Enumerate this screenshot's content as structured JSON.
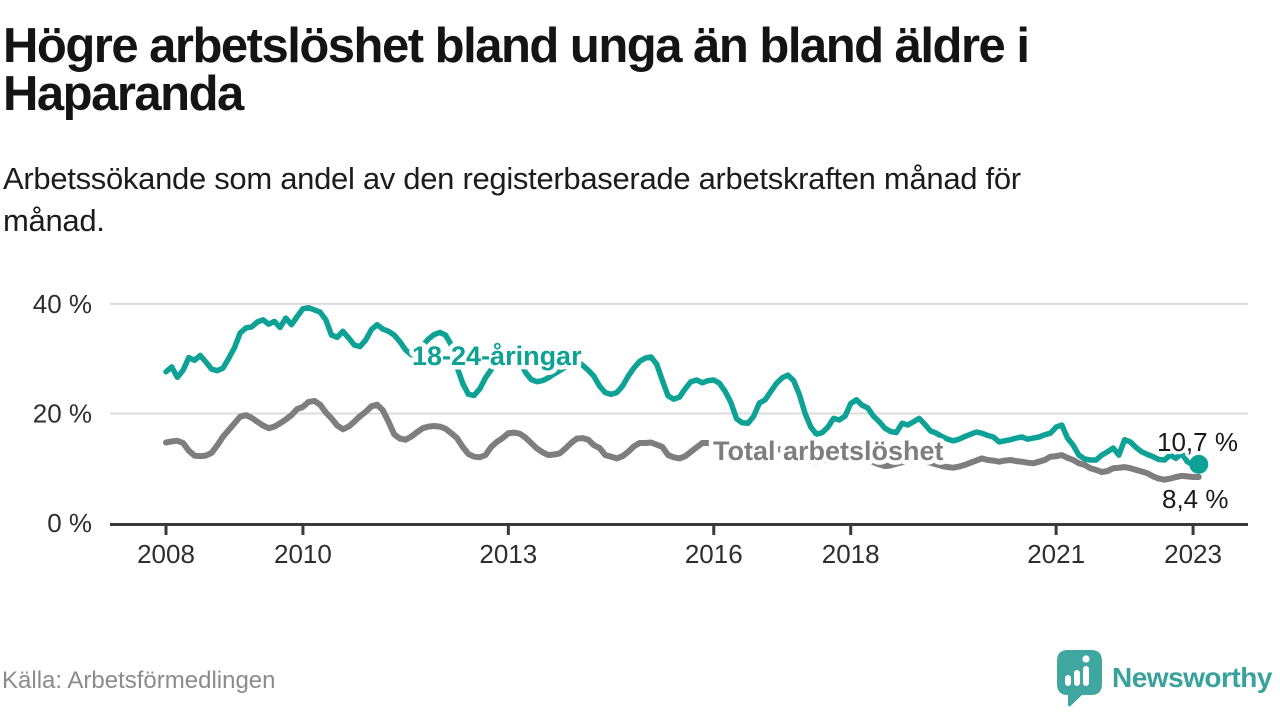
{
  "header": {
    "title_line1": "Högre arbetslöshet bland unga än bland äldre i",
    "title_line2": "Haparanda",
    "subtitle_line1": "Arbetssökande som andel av den registerbaserade arbetskraften månad för",
    "subtitle_line2": "månad."
  },
  "footer": {
    "source": "Källa: Arbetsförmedlingen",
    "logo_text": "Newsworthy"
  },
  "colors": {
    "youth": "#0da295",
    "total": "#7e7e7e",
    "grid": "#dcdcdc",
    "axis": "#3a3a3a",
    "end_label": "#1a1a1a",
    "logo": "#3fa6a0"
  },
  "chart_data": {
    "type": "line",
    "title": "Högre arbetslöshet bland unga än bland äldre i Haparanda",
    "subtitle": "Arbetssökande som andel av den registerbaserade arbetskraften månad för månad.",
    "source": "Källa: Arbetsförmedlingen",
    "x_start": "2008-01",
    "x_interval": "month",
    "x_range": [
      "2008-01",
      "2023-02"
    ],
    "ylim": [
      0,
      42
    ],
    "grid": "horizontal gridlines at 20 and 40 only",
    "legend_position": "inline labels on lines",
    "x_ticks": [
      {
        "year": 2008,
        "label": "2008"
      },
      {
        "year": 2010,
        "label": "2010"
      },
      {
        "year": 2013,
        "label": "2013"
      },
      {
        "year": 2016,
        "label": "2016"
      },
      {
        "year": 2018,
        "label": "2018"
      },
      {
        "year": 2021,
        "label": "2021"
      },
      {
        "year": 2023,
        "label": "2023"
      }
    ],
    "y_ticks": [
      {
        "value": 0,
        "label": "0 %"
      },
      {
        "value": 20,
        "label": "20 %"
      },
      {
        "value": 40,
        "label": "40 %"
      }
    ],
    "end_labels": [
      "10,7 %",
      "8,4 %"
    ],
    "series": [
      {
        "name": "18-24-åringar",
        "color": "#0da295",
        "last_value_label": "10,7 %",
        "values": [
          27.6,
          28.5,
          26.6,
          27.9,
          30.2,
          29.7,
          30.6,
          29.4,
          28.1,
          27.8,
          28.3,
          30.1,
          32,
          34.7,
          35.6,
          35.8,
          36.7,
          37.1,
          36.3,
          36.8,
          35.7,
          37.4,
          36.2,
          37.7,
          39.1,
          39.3,
          38.9,
          38.5,
          37.1,
          34.3,
          33.9,
          35,
          33.8,
          32.5,
          32.2,
          33.4,
          35.3,
          36.2,
          35.4,
          35,
          34.3,
          33.1,
          31.6,
          30.7,
          31.2,
          32.4,
          33.6,
          34.4,
          34.8,
          34.3,
          32.5,
          28.5,
          25.5,
          23.5,
          23.3,
          24.5,
          26.5,
          28,
          29.5,
          30.5,
          31,
          30.5,
          29.5,
          27.5,
          26.2,
          25.8,
          26,
          26.5,
          27.2,
          27.8,
          28.5,
          29.2,
          29.5,
          28.8,
          27.9,
          26.8,
          25,
          23.8,
          23.5,
          23.8,
          25,
          26.8,
          28.3,
          29.5,
          30.1,
          30.3,
          29,
          26,
          23.2,
          22.6,
          23,
          24.5,
          25.8,
          26.1,
          25.6,
          26,
          26.1,
          25.5,
          24,
          22,
          19,
          18.3,
          18.2,
          19.5,
          21.9,
          22.5,
          24,
          25.5,
          26.5,
          27,
          26,
          23.5,
          20,
          17.5,
          16.2,
          16.5,
          17.5,
          19.1,
          18.8,
          19.5,
          21.8,
          22.5,
          21.5,
          21,
          19.5,
          18.5,
          17.3,
          16.7,
          16.5,
          18.2,
          17.9,
          18.5,
          19.1,
          18,
          16.8,
          16.4,
          15.8,
          15.3,
          15,
          15.3,
          15.8,
          16.2,
          16.6,
          16.4,
          16,
          15.7,
          14.8,
          15,
          15.2,
          15.5,
          15.7,
          15.3,
          15.5,
          15.7,
          16.1,
          16.4,
          17.5,
          17.9,
          15.5,
          14.2,
          12.4,
          11.7,
          11.5,
          11.5,
          12.4,
          13,
          13.7,
          12.4,
          15.2,
          14.8,
          13.8,
          13,
          12.5,
          12.1,
          11.6,
          11.5,
          12.4,
          11.8,
          12.7,
          11.2,
          10.6,
          10.7
        ]
      },
      {
        "name": "Total arbetslöshet",
        "color": "#7e7e7e",
        "last_value_label": "8,4 %",
        "values": [
          14.7,
          14.9,
          15,
          14.6,
          13.2,
          12.3,
          12.2,
          12.3,
          12.8,
          14.2,
          15.8,
          17,
          18.2,
          19.4,
          19.7,
          19.2,
          18.5,
          17.8,
          17.3,
          17.6,
          18.2,
          18.9,
          19.7,
          20.8,
          21.2,
          22.1,
          22.3,
          21.6,
          20.2,
          19.1,
          17.8,
          17.1,
          17.6,
          18.5,
          19.5,
          20.3,
          21.3,
          21.6,
          20.6,
          18.5,
          16.2,
          15.4,
          15.2,
          15.8,
          16.6,
          17.3,
          17.6,
          17.7,
          17.6,
          17.2,
          16.4,
          15.5,
          13.9,
          12.6,
          12.1,
          12,
          12.4,
          13.9,
          14.8,
          15.5,
          16.4,
          16.5,
          16.3,
          15.6,
          14.6,
          13.6,
          12.9,
          12.4,
          12.5,
          12.7,
          13.6,
          14.6,
          15.4,
          15.5,
          15.2,
          14.2,
          13.7,
          12.4,
          12.1,
          11.8,
          12.2,
          13,
          14,
          14.6,
          14.6,
          14.7,
          14.3,
          13.9,
          12.4,
          12,
          11.8,
          12.2,
          13,
          13.8,
          14.6,
          14.6,
          14.5,
          14.3,
          13.8,
          13.2,
          12.5,
          12,
          11.7,
          11.9,
          12.3,
          12.8,
          13.2,
          13.4,
          13.5,
          13.4,
          13,
          12.5,
          12,
          11.5,
          11.2,
          11.4,
          11.8,
          12.2,
          12.5,
          12.6,
          12.6,
          12.4,
          12,
          11.6,
          11.1,
          10.7,
          10.4,
          10.5,
          10.8,
          11.1,
          11.3,
          11.4,
          11.5,
          11.3,
          11,
          10.7,
          10.4,
          10.2,
          10.1,
          10.3,
          10.6,
          11,
          11.4,
          11.8,
          11.5,
          11.4,
          11.2,
          11.4,
          11.5,
          11.3,
          11.2,
          11,
          10.9,
          11.2,
          11.5,
          12.1,
          12.2,
          12.4,
          11.9,
          11.5,
          10.9,
          10.6,
          10,
          9.7,
          9.3,
          9.5,
          10,
          10.1,
          10.2,
          10,
          9.7,
          9.4,
          9.1,
          8.5,
          8.1,
          7.9,
          8.1,
          8.4,
          8.6,
          8.5,
          8.4,
          8.4
        ]
      }
    ]
  }
}
